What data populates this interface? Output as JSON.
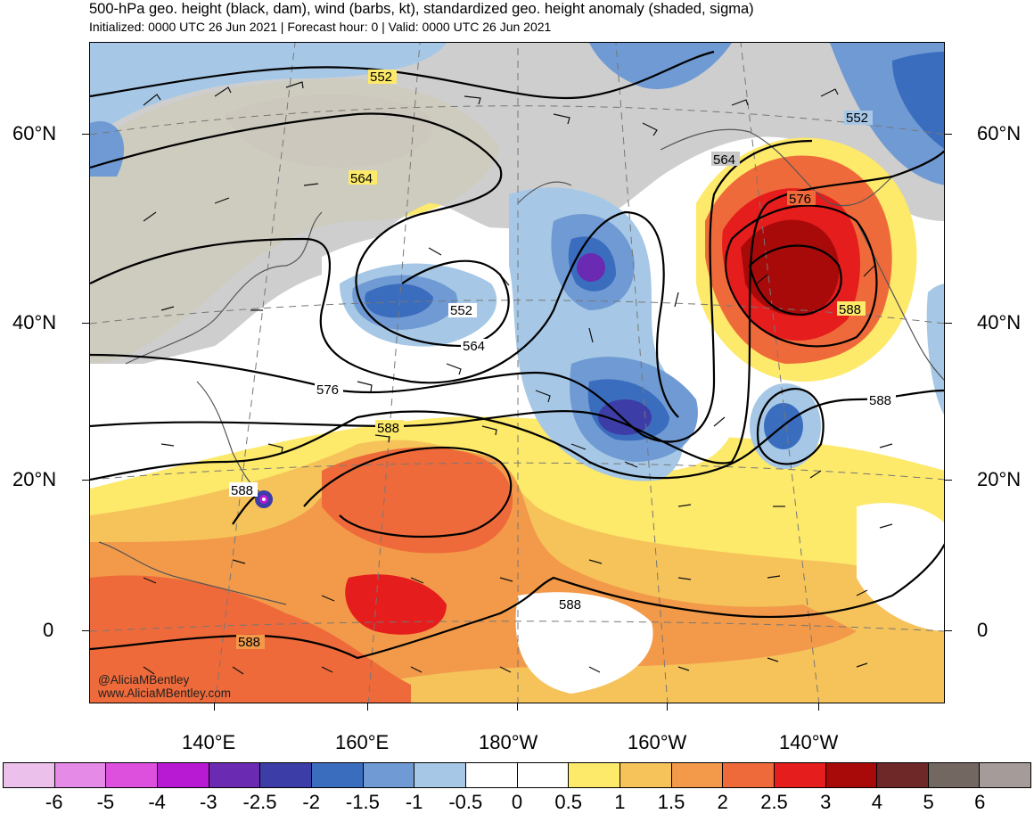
{
  "header": {
    "title": "500-hPa geo. height (black, dam), wind (barbs, kt), standardized geo. height anomaly (shaded, sigma)",
    "subtitle": "Initialized: 0000 UTC 26 Jun 2021 | Forecast hour: 0 | Valid: 0000 UTC 26 Jun 2021"
  },
  "axes": {
    "lat_labels": [
      "60°N",
      "40°N",
      "20°N",
      "0"
    ],
    "lon_labels": [
      "140°E",
      "160°E",
      "180°W",
      "160°W",
      "140°W"
    ]
  },
  "contours": {
    "labels": [
      "552",
      "552",
      "564",
      "552",
      "564",
      "564",
      "576",
      "576",
      "588",
      "588",
      "588",
      "588",
      "588",
      "588"
    ]
  },
  "watermark": {
    "handle": "@AliciaMBentley",
    "url": "www.AliciaMBentley.com"
  },
  "colorbar": {
    "colors": [
      "#ebc0ea",
      "#e58ae6",
      "#dc50dd",
      "#b81ad4",
      "#6a2ab1",
      "#3c3da6",
      "#3b6dbf",
      "#6f9ad3",
      "#a6c8e6",
      "#ffffff",
      "#ffffff",
      "#fde96a",
      "#f6c35a",
      "#f29a4a",
      "#ef6a3a",
      "#e51d1c",
      "#a80a0a",
      "#6e2828",
      "#736761",
      "#a59b98"
    ],
    "labels": [
      "-6",
      "-5",
      "-4",
      "-3",
      "-2.5",
      "-2",
      "-1.5",
      "-1",
      "-0.5",
      "0",
      "0.5",
      "1",
      "1.5",
      "2",
      "2.5",
      "3",
      "4",
      "5",
      "6"
    ]
  }
}
